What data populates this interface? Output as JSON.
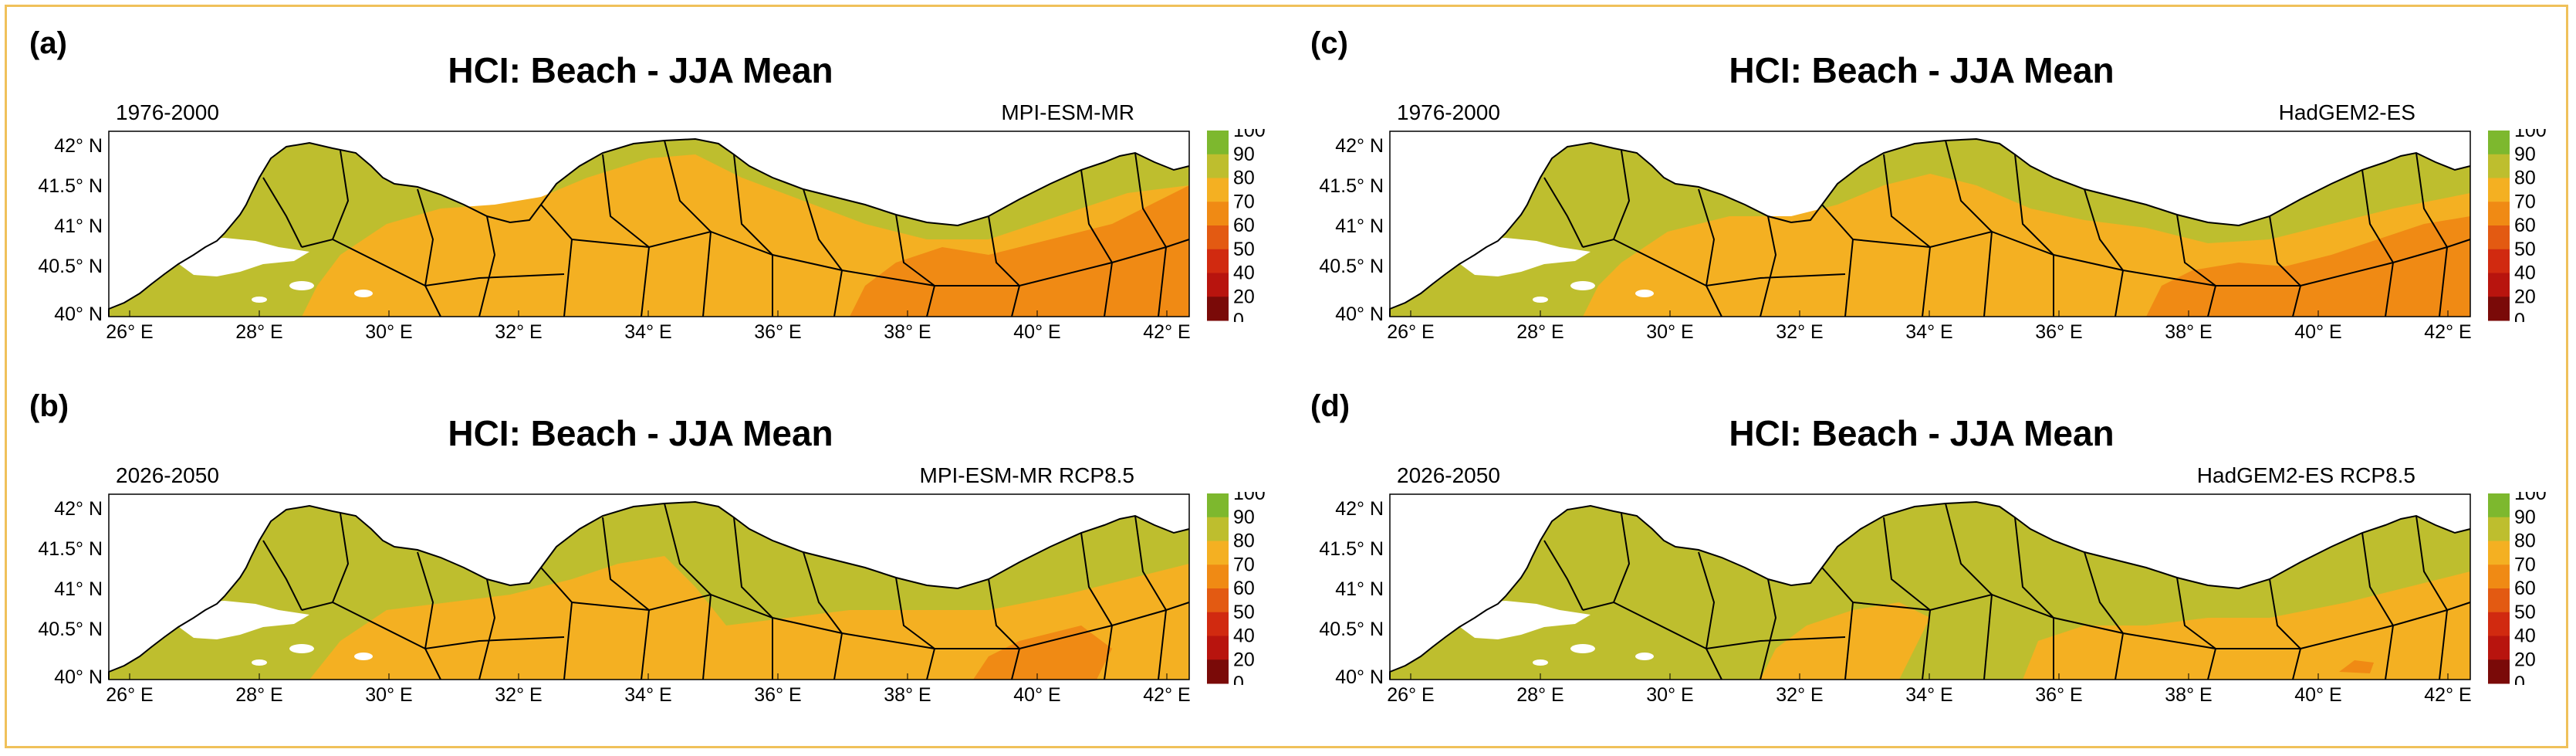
{
  "colors": {
    "border": "#f0c15a",
    "land_mid": "#bebe2e",
    "land_warm": "#f4b022",
    "land_hot": "#f08a14",
    "sea": "#ffffff",
    "boundary": "#000000"
  },
  "panels": [
    {
      "letter": "(a)",
      "title": "HCI: Beach - JJA Mean",
      "period": "1976-2000",
      "model": "MPI-ESM-MR"
    },
    {
      "letter": "(b)",
      "title": "HCI: Beach - JJA Mean",
      "period": "2026-2050",
      "model": "MPI-ESM-MR RCP8.5"
    },
    {
      "letter": "(c)",
      "title": "HCI: Beach - JJA Mean",
      "period": "1976-2000",
      "model": "HadGEM2-ES"
    },
    {
      "letter": "(d)",
      "title": "HCI: Beach - JJA Mean",
      "period": "2026-2050",
      "model": "HadGEM2-ES RCP8.5"
    }
  ],
  "axes": {
    "lon_ticks": [
      "26° E",
      "28° E",
      "30° E",
      "32° E",
      "34° E",
      "36° E",
      "38° E",
      "40° E",
      "42° E"
    ],
    "lat_ticks": [
      "42° N",
      "41.5° N",
      "41° N",
      "40.5° N",
      "40° N"
    ]
  },
  "colorbar": {
    "ticks": [
      "100",
      "90",
      "80",
      "70",
      "60",
      "50",
      "40",
      "20",
      "0"
    ],
    "bands": [
      {
        "from": 90,
        "to": 100,
        "color": "#7db82e"
      },
      {
        "from": 80,
        "to": 90,
        "color": "#bebe2e"
      },
      {
        "from": 70,
        "to": 80,
        "color": "#f4b022"
      },
      {
        "from": 60,
        "to": 70,
        "color": "#f08a14"
      },
      {
        "from": 50,
        "to": 60,
        "color": "#e35a12"
      },
      {
        "from": 40,
        "to": 50,
        "color": "#d12a10"
      },
      {
        "from": 20,
        "to": 40,
        "color": "#b8140e"
      },
      {
        "from": 0,
        "to": 20,
        "color": "#7a0a08"
      }
    ]
  }
}
